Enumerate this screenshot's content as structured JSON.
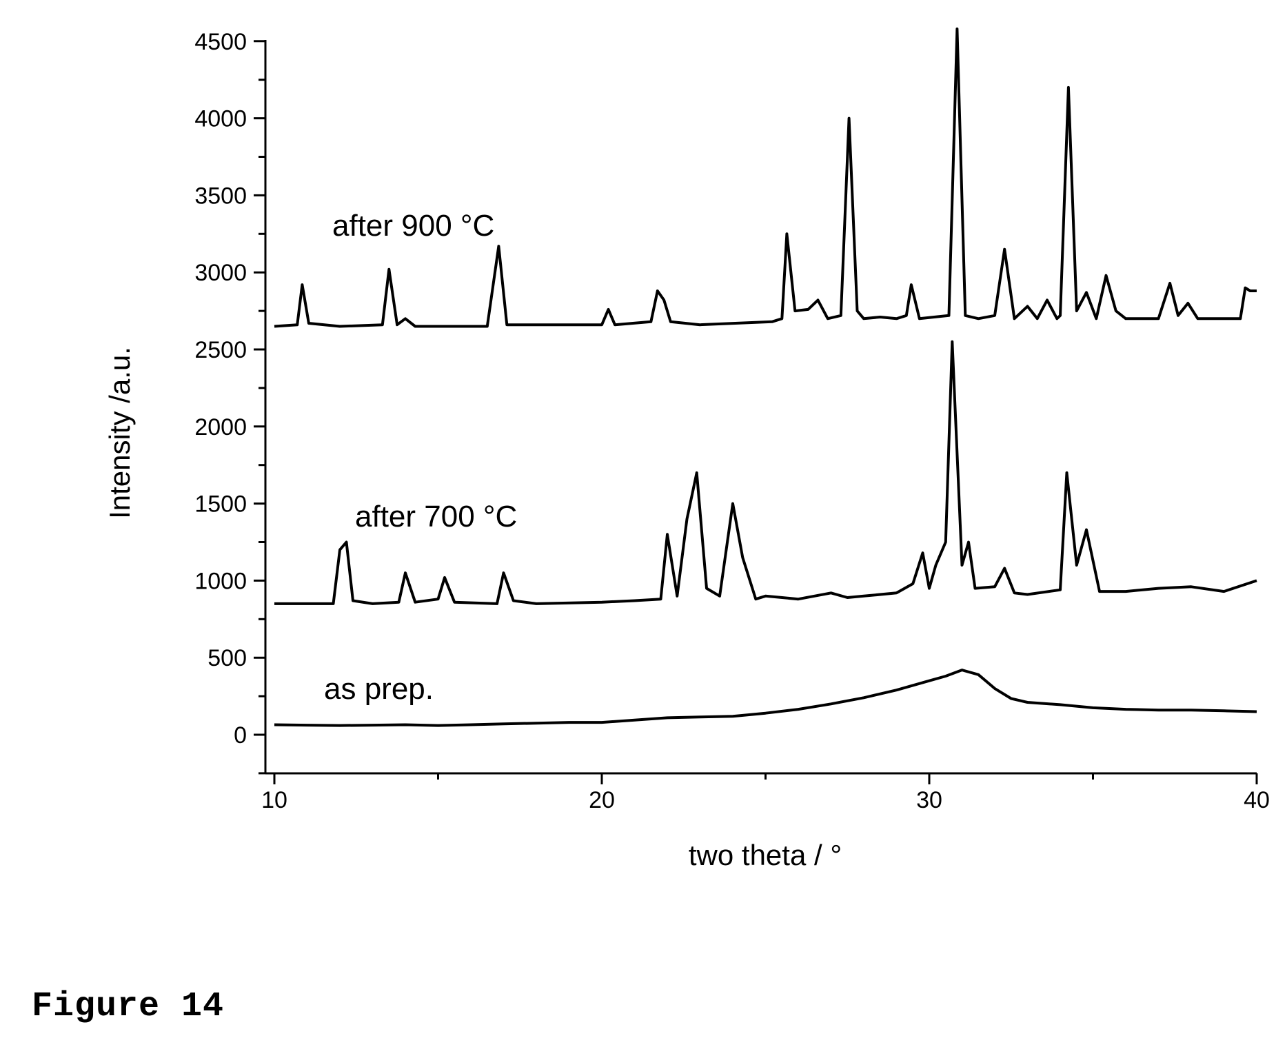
{
  "figure": {
    "caption": "Figure 14"
  },
  "chart_data": {
    "type": "line",
    "xlabel": "two theta / °",
    "ylabel": "Intensity /a.u.",
    "xlim": [
      10,
      40
    ],
    "ylim": [
      -250,
      4500
    ],
    "x_ticks": [
      10,
      20,
      30,
      40
    ],
    "y_ticks": [
      0,
      500,
      1000,
      1500,
      2000,
      2500,
      3000,
      3500,
      4000,
      4500
    ],
    "grid": false,
    "legend": "none",
    "line_color": "#000000",
    "series": [
      {
        "name": "as prep.",
        "points": [
          [
            10,
            65
          ],
          [
            11,
            62
          ],
          [
            12,
            60
          ],
          [
            13,
            62
          ],
          [
            14,
            65
          ],
          [
            15,
            60
          ],
          [
            16,
            65
          ],
          [
            17,
            70
          ],
          [
            18,
            75
          ],
          [
            19,
            80
          ],
          [
            20,
            80
          ],
          [
            21,
            95
          ],
          [
            22,
            110
          ],
          [
            23,
            115
          ],
          [
            24,
            120
          ],
          [
            25,
            140
          ],
          [
            26,
            165
          ],
          [
            27,
            200
          ],
          [
            28,
            240
          ],
          [
            29,
            290
          ],
          [
            30,
            350
          ],
          [
            30.5,
            380
          ],
          [
            31,
            420
          ],
          [
            31.5,
            390
          ],
          [
            32,
            300
          ],
          [
            32.5,
            235
          ],
          [
            33,
            210
          ],
          [
            34,
            195
          ],
          [
            35,
            175
          ],
          [
            36,
            165
          ],
          [
            37,
            160
          ],
          [
            38,
            160
          ],
          [
            39,
            155
          ],
          [
            40,
            150
          ]
        ]
      },
      {
        "name": "after 700 °C",
        "points": [
          [
            10,
            850
          ],
          [
            11.8,
            850
          ],
          [
            12,
            1200
          ],
          [
            12.2,
            1250
          ],
          [
            12.4,
            870
          ],
          [
            13,
            850
          ],
          [
            13.8,
            860
          ],
          [
            14,
            1050
          ],
          [
            14.3,
            860
          ],
          [
            15,
            880
          ],
          [
            15.2,
            1020
          ],
          [
            15.5,
            860
          ],
          [
            16.8,
            850
          ],
          [
            17,
            1050
          ],
          [
            17.3,
            870
          ],
          [
            18,
            850
          ],
          [
            20,
            860
          ],
          [
            21,
            870
          ],
          [
            21.8,
            880
          ],
          [
            22,
            1300
          ],
          [
            22.3,
            900
          ],
          [
            22.6,
            1400
          ],
          [
            22.9,
            1700
          ],
          [
            23.2,
            950
          ],
          [
            23.6,
            900
          ],
          [
            24,
            1500
          ],
          [
            24.3,
            1150
          ],
          [
            24.7,
            880
          ],
          [
            25,
            900
          ],
          [
            26,
            880
          ],
          [
            27,
            920
          ],
          [
            27.5,
            890
          ],
          [
            28,
            900
          ],
          [
            29,
            920
          ],
          [
            29.5,
            980
          ],
          [
            29.8,
            1180
          ],
          [
            30,
            950
          ],
          [
            30.2,
            1100
          ],
          [
            30.5,
            1250
          ],
          [
            30.7,
            2550
          ],
          [
            31,
            1100
          ],
          [
            31.2,
            1250
          ],
          [
            31.4,
            950
          ],
          [
            32,
            960
          ],
          [
            32.3,
            1080
          ],
          [
            32.6,
            920
          ],
          [
            33,
            910
          ],
          [
            34,
            940
          ],
          [
            34.2,
            1700
          ],
          [
            34.5,
            1100
          ],
          [
            34.8,
            1330
          ],
          [
            35.2,
            930
          ],
          [
            36,
            930
          ],
          [
            37,
            950
          ],
          [
            38,
            960
          ],
          [
            39,
            930
          ],
          [
            40,
            1000
          ]
        ]
      },
      {
        "name": "after 900 °C",
        "points": [
          [
            10,
            2650
          ],
          [
            10.7,
            2660
          ],
          [
            10.85,
            2920
          ],
          [
            11.05,
            2670
          ],
          [
            12,
            2650
          ],
          [
            13.3,
            2660
          ],
          [
            13.5,
            3020
          ],
          [
            13.75,
            2660
          ],
          [
            14,
            2700
          ],
          [
            14.3,
            2650
          ],
          [
            16.5,
            2650
          ],
          [
            16.85,
            3170
          ],
          [
            17.1,
            2660
          ],
          [
            18,
            2660
          ],
          [
            20,
            2660
          ],
          [
            20.2,
            2760
          ],
          [
            20.4,
            2660
          ],
          [
            21.5,
            2680
          ],
          [
            21.7,
            2880
          ],
          [
            21.9,
            2820
          ],
          [
            22.1,
            2680
          ],
          [
            23,
            2660
          ],
          [
            25.2,
            2680
          ],
          [
            25.5,
            2700
          ],
          [
            25.65,
            3250
          ],
          [
            25.9,
            2750
          ],
          [
            26.3,
            2760
          ],
          [
            26.6,
            2820
          ],
          [
            26.9,
            2700
          ],
          [
            27.3,
            2720
          ],
          [
            27.55,
            4000
          ],
          [
            27.8,
            2750
          ],
          [
            28,
            2700
          ],
          [
            28.5,
            2710
          ],
          [
            29,
            2700
          ],
          [
            29.3,
            2720
          ],
          [
            29.45,
            2920
          ],
          [
            29.7,
            2700
          ],
          [
            30.6,
            2720
          ],
          [
            30.85,
            4580
          ],
          [
            31.1,
            2720
          ],
          [
            31.5,
            2700
          ],
          [
            32,
            2720
          ],
          [
            32.3,
            3150
          ],
          [
            32.6,
            2700
          ],
          [
            33,
            2780
          ],
          [
            33.3,
            2700
          ],
          [
            33.6,
            2820
          ],
          [
            33.9,
            2700
          ],
          [
            34,
            2720
          ],
          [
            34.25,
            4200
          ],
          [
            34.5,
            2750
          ],
          [
            34.8,
            2870
          ],
          [
            35.1,
            2700
          ],
          [
            35.4,
            2980
          ],
          [
            35.7,
            2750
          ],
          [
            36,
            2700
          ],
          [
            37,
            2700
          ],
          [
            37.35,
            2930
          ],
          [
            37.6,
            2720
          ],
          [
            37.9,
            2800
          ],
          [
            38.2,
            2700
          ],
          [
            39,
            2700
          ],
          [
            39.5,
            2700
          ],
          [
            39.65,
            2900
          ],
          [
            39.8,
            2880
          ],
          [
            40,
            2880
          ]
        ]
      }
    ]
  }
}
